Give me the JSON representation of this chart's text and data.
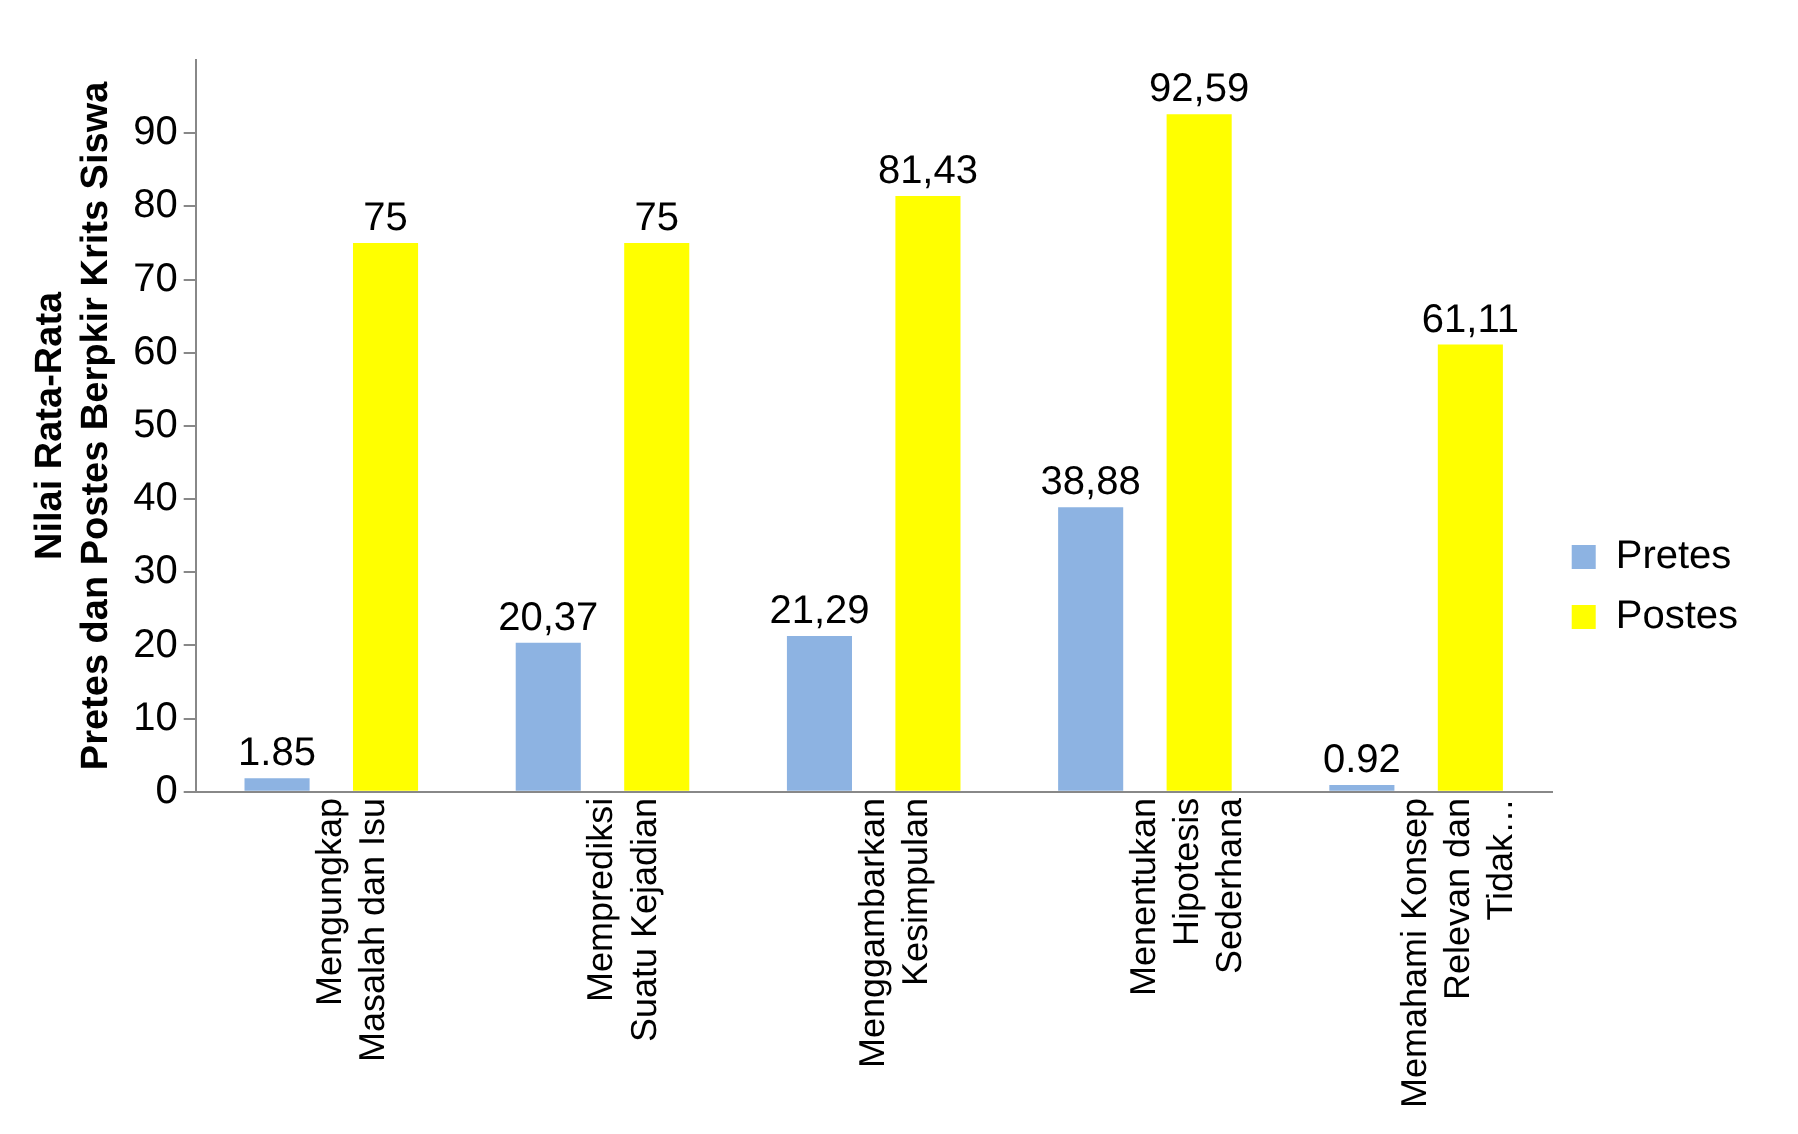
{
  "chart_data": {
    "type": "bar",
    "ylabel": "Nilai Rata-Rata Pretes dan Postes Berpkir Krits Siswa",
    "categories": [
      "Mengungkap Masalah dan Isu",
      "Memprediksi Suatu Kejadian",
      "Menggambarkan Kesimpulan",
      "Menentukan Hipotesis Sederhana",
      "Memahami Konsep Relevan dan Tidak…"
    ],
    "series": [
      {
        "name": "Pretes",
        "color": "#8db3e2",
        "values": [
          1.85,
          20.37,
          21.29,
          38.88,
          0.92
        ],
        "value_labels": [
          "1.85",
          "20,37",
          "21,29",
          "38,88",
          "0.92"
        ]
      },
      {
        "name": "Postes",
        "color": "#ffff00",
        "values": [
          75,
          75,
          81.43,
          92.59,
          61.11
        ],
        "value_labels": [
          "75",
          "75",
          "81,43",
          "92,59",
          "61,11"
        ]
      }
    ],
    "ylim": [
      0,
      100
    ],
    "yticks": [
      0,
      10,
      20,
      30,
      40,
      50,
      60,
      70,
      80,
      90
    ],
    "grid": false,
    "legend": "right"
  }
}
